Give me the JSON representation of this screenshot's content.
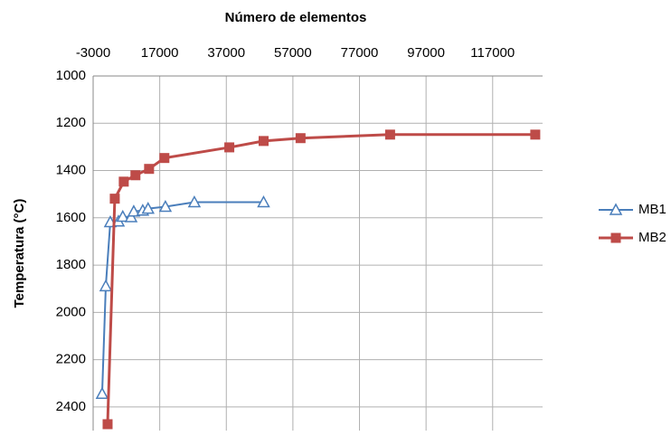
{
  "chart_data": {
    "type": "line",
    "x_label": "Número de elementos",
    "y_label": "Temperatura (°C)",
    "xlim": [
      -3000,
      132000
    ],
    "xticks": [
      -3000,
      17000,
      37000,
      57000,
      77000,
      97000,
      117000
    ],
    "ylim": [
      1000,
      2500
    ],
    "yticks": [
      1000,
      1200,
      1400,
      1600,
      1800,
      2000,
      2200,
      2400
    ],
    "y_inverted": true,
    "x_axis_position": "top",
    "grid": true,
    "legend": "right",
    "series": [
      {
        "name": "MB1",
        "color": "#4a7ebb",
        "marker": "triangle",
        "x": [
          -300,
          800,
          2150,
          4600,
          5900,
          8400,
          9200,
          11900,
          13500,
          18700,
          27400,
          48200
        ],
        "values": [
          2344,
          1889,
          1618,
          1615,
          1595,
          1597,
          1573,
          1569,
          1561,
          1553,
          1534,
          1534
        ]
      },
      {
        "name": "MB2",
        "color": "#be4b48",
        "marker": "square",
        "x": [
          1340,
          3500,
          6200,
          9700,
          13800,
          18400,
          37900,
          48200,
          59300,
          86200,
          129800
        ],
        "values": [
          2473,
          1519,
          1447,
          1420,
          1393,
          1347,
          1302,
          1275,
          1263,
          1248,
          1248
        ]
      }
    ]
  }
}
